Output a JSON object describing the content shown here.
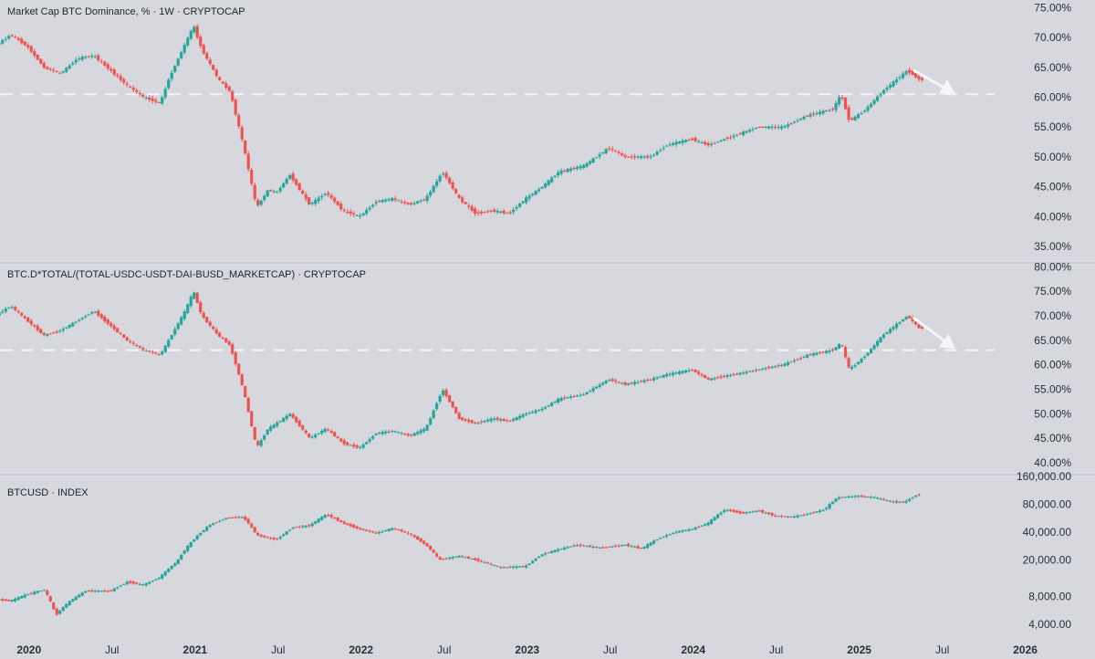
{
  "colors": {
    "background": "#d6d8de",
    "up": "#26a69a",
    "down": "#ef5350",
    "separator": "#b9bcc4",
    "dash": "#f3f4f6",
    "arrow": "#f5f6f8"
  },
  "chart_data": [
    {
      "type": "candlestick",
      "title": "Market Cap BTC Dominance, % · 1W · CRYPTOCAP",
      "ylim": [
        33,
        76
      ],
      "yticks": [
        "75.00%",
        "70.00%",
        "65.00%",
        "60.00%",
        "55.00%",
        "50.00%",
        "45.00%",
        "40.00%",
        "35.00%"
      ],
      "ytick_values": [
        75,
        70,
        65,
        60,
        55,
        50,
        45,
        40,
        35
      ],
      "reference_line": 60.5,
      "projection": [
        {
          "t": 2025.33,
          "v": 64.5
        },
        {
          "t": 2025.58,
          "v": 60.5
        }
      ],
      "path": [
        [
          2019.6,
          70.5
        ],
        [
          2019.8,
          68.5
        ],
        [
          2019.9,
          70.5
        ],
        [
          2020.0,
          68.5
        ],
        [
          2020.1,
          65
        ],
        [
          2020.2,
          64
        ],
        [
          2020.3,
          66.5
        ],
        [
          2020.4,
          67
        ],
        [
          2020.5,
          64.5
        ],
        [
          2020.6,
          62
        ],
        [
          2020.7,
          60
        ],
        [
          2020.8,
          59
        ],
        [
          2020.85,
          63
        ],
        [
          2020.95,
          69
        ],
        [
          2021.0,
          72
        ],
        [
          2021.05,
          68
        ],
        [
          2021.15,
          63
        ],
        [
          2021.22,
          61
        ],
        [
          2021.3,
          52
        ],
        [
          2021.38,
          41.5
        ],
        [
          2021.45,
          44.5
        ],
        [
          2021.5,
          44
        ],
        [
          2021.58,
          47
        ],
        [
          2021.7,
          42
        ],
        [
          2021.8,
          44
        ],
        [
          2021.9,
          41
        ],
        [
          2022.0,
          40
        ],
        [
          2022.1,
          42.5
        ],
        [
          2022.2,
          43
        ],
        [
          2022.3,
          42
        ],
        [
          2022.4,
          43
        ],
        [
          2022.5,
          47.5
        ],
        [
          2022.6,
          43
        ],
        [
          2022.7,
          40.5
        ],
        [
          2022.8,
          41
        ],
        [
          2022.9,
          40.5
        ],
        [
          2023.0,
          43
        ],
        [
          2023.1,
          45
        ],
        [
          2023.2,
          47.5
        ],
        [
          2023.35,
          48.5
        ],
        [
          2023.5,
          51.5
        ],
        [
          2023.6,
          50
        ],
        [
          2023.75,
          50
        ],
        [
          2023.85,
          52
        ],
        [
          2024.0,
          53
        ],
        [
          2024.1,
          52
        ],
        [
          2024.25,
          53.5
        ],
        [
          2024.4,
          55
        ],
        [
          2024.55,
          55
        ],
        [
          2024.7,
          57
        ],
        [
          2024.85,
          58
        ],
        [
          2024.9,
          60.5
        ],
        [
          2024.95,
          56
        ],
        [
          2025.05,
          58
        ],
        [
          2025.15,
          61
        ],
        [
          2025.3,
          64.5
        ],
        [
          2025.37,
          63
        ]
      ]
    },
    {
      "type": "candlestick",
      "title": "BTC.D*TOTAL/(TOTAL-USDC-USDT-DAI-BUSD_MARKETCAP) · CRYPTOCAP",
      "ylim": [
        38.5,
        81
      ],
      "yticks": [
        "80.00%",
        "75.00%",
        "70.00%",
        "65.00%",
        "60.00%",
        "55.00%",
        "50.00%",
        "45.00%",
        "40.00%"
      ],
      "ytick_values": [
        80,
        75,
        70,
        65,
        60,
        55,
        50,
        45,
        40
      ],
      "reference_line": 63,
      "projection": [
        {
          "t": 2025.33,
          "v": 69.5
        },
        {
          "t": 2025.58,
          "v": 63.2
        }
      ],
      "path": [
        [
          2019.6,
          71
        ],
        [
          2019.8,
          70
        ],
        [
          2019.9,
          72
        ],
        [
          2020.0,
          69
        ],
        [
          2020.1,
          66
        ],
        [
          2020.2,
          67
        ],
        [
          2020.3,
          69
        ],
        [
          2020.4,
          71
        ],
        [
          2020.5,
          68
        ],
        [
          2020.6,
          65
        ],
        [
          2020.7,
          63
        ],
        [
          2020.8,
          62
        ],
        [
          2020.85,
          65
        ],
        [
          2020.95,
          71
        ],
        [
          2021.0,
          75
        ],
        [
          2021.05,
          70
        ],
        [
          2021.15,
          66
        ],
        [
          2021.22,
          64
        ],
        [
          2021.3,
          55
        ],
        [
          2021.38,
          43
        ],
        [
          2021.45,
          47
        ],
        [
          2021.5,
          48
        ],
        [
          2021.58,
          50
        ],
        [
          2021.7,
          45
        ],
        [
          2021.8,
          47
        ],
        [
          2021.9,
          44
        ],
        [
          2022.0,
          43
        ],
        [
          2022.1,
          46
        ],
        [
          2022.2,
          46.5
        ],
        [
          2022.3,
          45.5
        ],
        [
          2022.4,
          47
        ],
        [
          2022.5,
          55
        ],
        [
          2022.6,
          49
        ],
        [
          2022.7,
          48
        ],
        [
          2022.8,
          49
        ],
        [
          2022.9,
          48.5
        ],
        [
          2023.0,
          50
        ],
        [
          2023.1,
          51
        ],
        [
          2023.2,
          53
        ],
        [
          2023.35,
          54
        ],
        [
          2023.5,
          57
        ],
        [
          2023.6,
          56
        ],
        [
          2023.75,
          57
        ],
        [
          2023.85,
          58
        ],
        [
          2024.0,
          59
        ],
        [
          2024.1,
          57
        ],
        [
          2024.25,
          58
        ],
        [
          2024.4,
          59
        ],
        [
          2024.55,
          60
        ],
        [
          2024.7,
          62
        ],
        [
          2024.85,
          63
        ],
        [
          2024.9,
          64.5
        ],
        [
          2024.95,
          59
        ],
        [
          2025.05,
          62
        ],
        [
          2025.15,
          66
        ],
        [
          2025.3,
          70
        ],
        [
          2025.37,
          67.5
        ]
      ]
    },
    {
      "type": "candlestick",
      "title": "BTCUSD · INDEX",
      "scale": "log",
      "ylim": [
        3500,
        160000
      ],
      "yticks": [
        "160,000.00",
        "80,000.00",
        "40,000.00",
        "20,000.00",
        "8,000.00",
        "4,000.00"
      ],
      "ytick_values": [
        160000,
        80000,
        40000,
        20000,
        8000,
        4000
      ],
      "path": [
        [
          2019.6,
          9500
        ],
        [
          2019.7,
          8500
        ],
        [
          2019.8,
          7500
        ],
        [
          2019.9,
          7200
        ],
        [
          2020.0,
          8500
        ],
        [
          2020.1,
          9500
        ],
        [
          2020.17,
          5000
        ],
        [
          2020.25,
          7000
        ],
        [
          2020.35,
          9200
        ],
        [
          2020.5,
          9200
        ],
        [
          2020.6,
          11500
        ],
        [
          2020.7,
          10700
        ],
        [
          2020.8,
          13000
        ],
        [
          2020.9,
          19000
        ],
        [
          2021.0,
          33000
        ],
        [
          2021.1,
          48000
        ],
        [
          2021.2,
          57000
        ],
        [
          2021.3,
          58000
        ],
        [
          2021.38,
          37000
        ],
        [
          2021.5,
          33000
        ],
        [
          2021.6,
          45000
        ],
        [
          2021.7,
          47000
        ],
        [
          2021.8,
          62000
        ],
        [
          2021.9,
          50000
        ],
        [
          2022.0,
          43000
        ],
        [
          2022.1,
          39000
        ],
        [
          2022.2,
          44000
        ],
        [
          2022.3,
          38000
        ],
        [
          2022.4,
          29000
        ],
        [
          2022.48,
          20000
        ],
        [
          2022.6,
          22000
        ],
        [
          2022.7,
          20000
        ],
        [
          2022.85,
          16500
        ],
        [
          2023.0,
          17000
        ],
        [
          2023.1,
          23000
        ],
        [
          2023.2,
          26000
        ],
        [
          2023.3,
          29000
        ],
        [
          2023.45,
          27000
        ],
        [
          2023.6,
          29000
        ],
        [
          2023.7,
          26500
        ],
        [
          2023.8,
          34000
        ],
        [
          2023.9,
          40000
        ],
        [
          2024.0,
          43000
        ],
        [
          2024.1,
          50000
        ],
        [
          2024.2,
          70000
        ],
        [
          2024.3,
          64000
        ],
        [
          2024.4,
          68000
        ],
        [
          2024.5,
          60000
        ],
        [
          2024.6,
          58000
        ],
        [
          2024.7,
          63000
        ],
        [
          2024.8,
          70000
        ],
        [
          2024.88,
          95000
        ],
        [
          2025.0,
          98000
        ],
        [
          2025.1,
          95000
        ],
        [
          2025.2,
          85000
        ],
        [
          2025.28,
          84000
        ],
        [
          2025.36,
          102000
        ]
      ]
    }
  ],
  "time_axis": [
    {
      "label": "2020",
      "t": 2020.0,
      "year": true
    },
    {
      "label": "Jul",
      "t": 2020.5,
      "year": false
    },
    {
      "label": "2021",
      "t": 2021.0,
      "year": true
    },
    {
      "label": "Jul",
      "t": 2021.5,
      "year": false
    },
    {
      "label": "2022",
      "t": 2022.0,
      "year": true
    },
    {
      "label": "Jul",
      "t": 2022.5,
      "year": false
    },
    {
      "label": "2023",
      "t": 2023.0,
      "year": true
    },
    {
      "label": "Jul",
      "t": 2023.5,
      "year": false
    },
    {
      "label": "2024",
      "t": 2024.0,
      "year": true
    },
    {
      "label": "Jul",
      "t": 2024.5,
      "year": false
    },
    {
      "label": "2025",
      "t": 2025.0,
      "year": true
    },
    {
      "label": "Jul",
      "t": 2025.5,
      "year": false
    },
    {
      "label": "2026",
      "t": 2026.0,
      "year": true
    }
  ]
}
